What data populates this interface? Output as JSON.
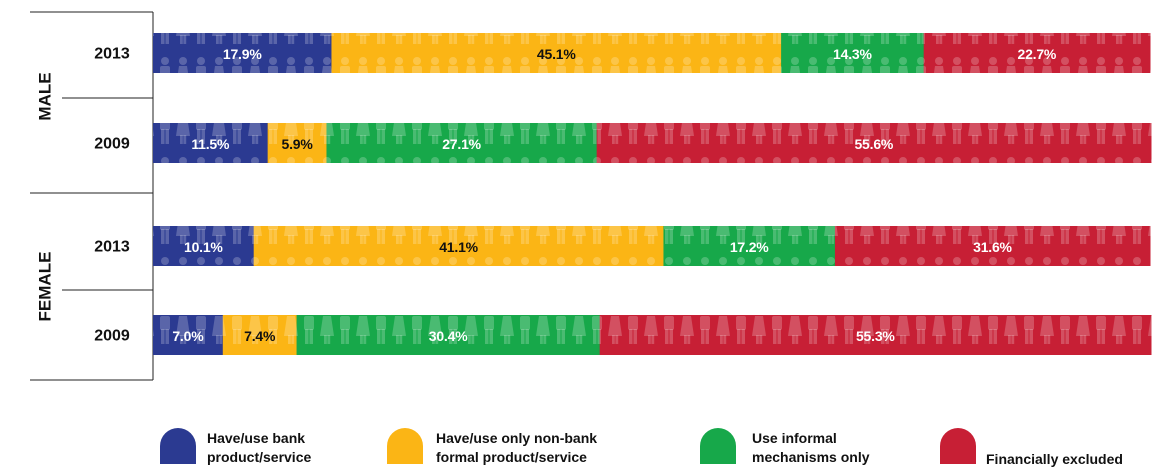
{
  "chart_data": {
    "type": "bar",
    "orientation": "horizontal",
    "stacked": true,
    "value_format": "percent",
    "groups": [
      {
        "name": "MALE",
        "rows": [
          {
            "year": "2013",
            "values": [
              17.9,
              45.1,
              14.3,
              22.7
            ]
          },
          {
            "year": "2009",
            "values": [
              11.5,
              5.9,
              27.1,
              55.6
            ]
          }
        ]
      },
      {
        "name": "FEMALE",
        "rows": [
          {
            "year": "2013",
            "values": [
              10.1,
              41.1,
              17.2,
              31.6
            ]
          },
          {
            "year": "2009",
            "values": [
              7.0,
              7.4,
              30.4,
              55.3
            ]
          }
        ]
      }
    ],
    "series": [
      {
        "name": "Have/use bank product/service",
        "color": "#2b3a91",
        "label_color": "#ffffff"
      },
      {
        "name": "Have/use only non-bank formal product/service",
        "color": "#fbb515",
        "label_color": "#111111"
      },
      {
        "name": "Use informal mechanisms only",
        "color": "#17a84a",
        "label_color": "#ffffff"
      },
      {
        "name": "Financially excluded",
        "color": "#c71f35",
        "label_color": "#ffffff"
      }
    ],
    "legend": {
      "position": "bottom",
      "items": [
        {
          "lines": [
            "Have/use bank",
            "product/service"
          ]
        },
        {
          "lines": [
            "Have/use only non-bank",
            "formal product/service"
          ]
        },
        {
          "lines": [
            "Use informal",
            "mechanisms only"
          ]
        },
        {
          "lines": [
            "Financially excluded"
          ]
        }
      ]
    },
    "icons": "person-silhouette-pattern",
    "grid": false
  }
}
